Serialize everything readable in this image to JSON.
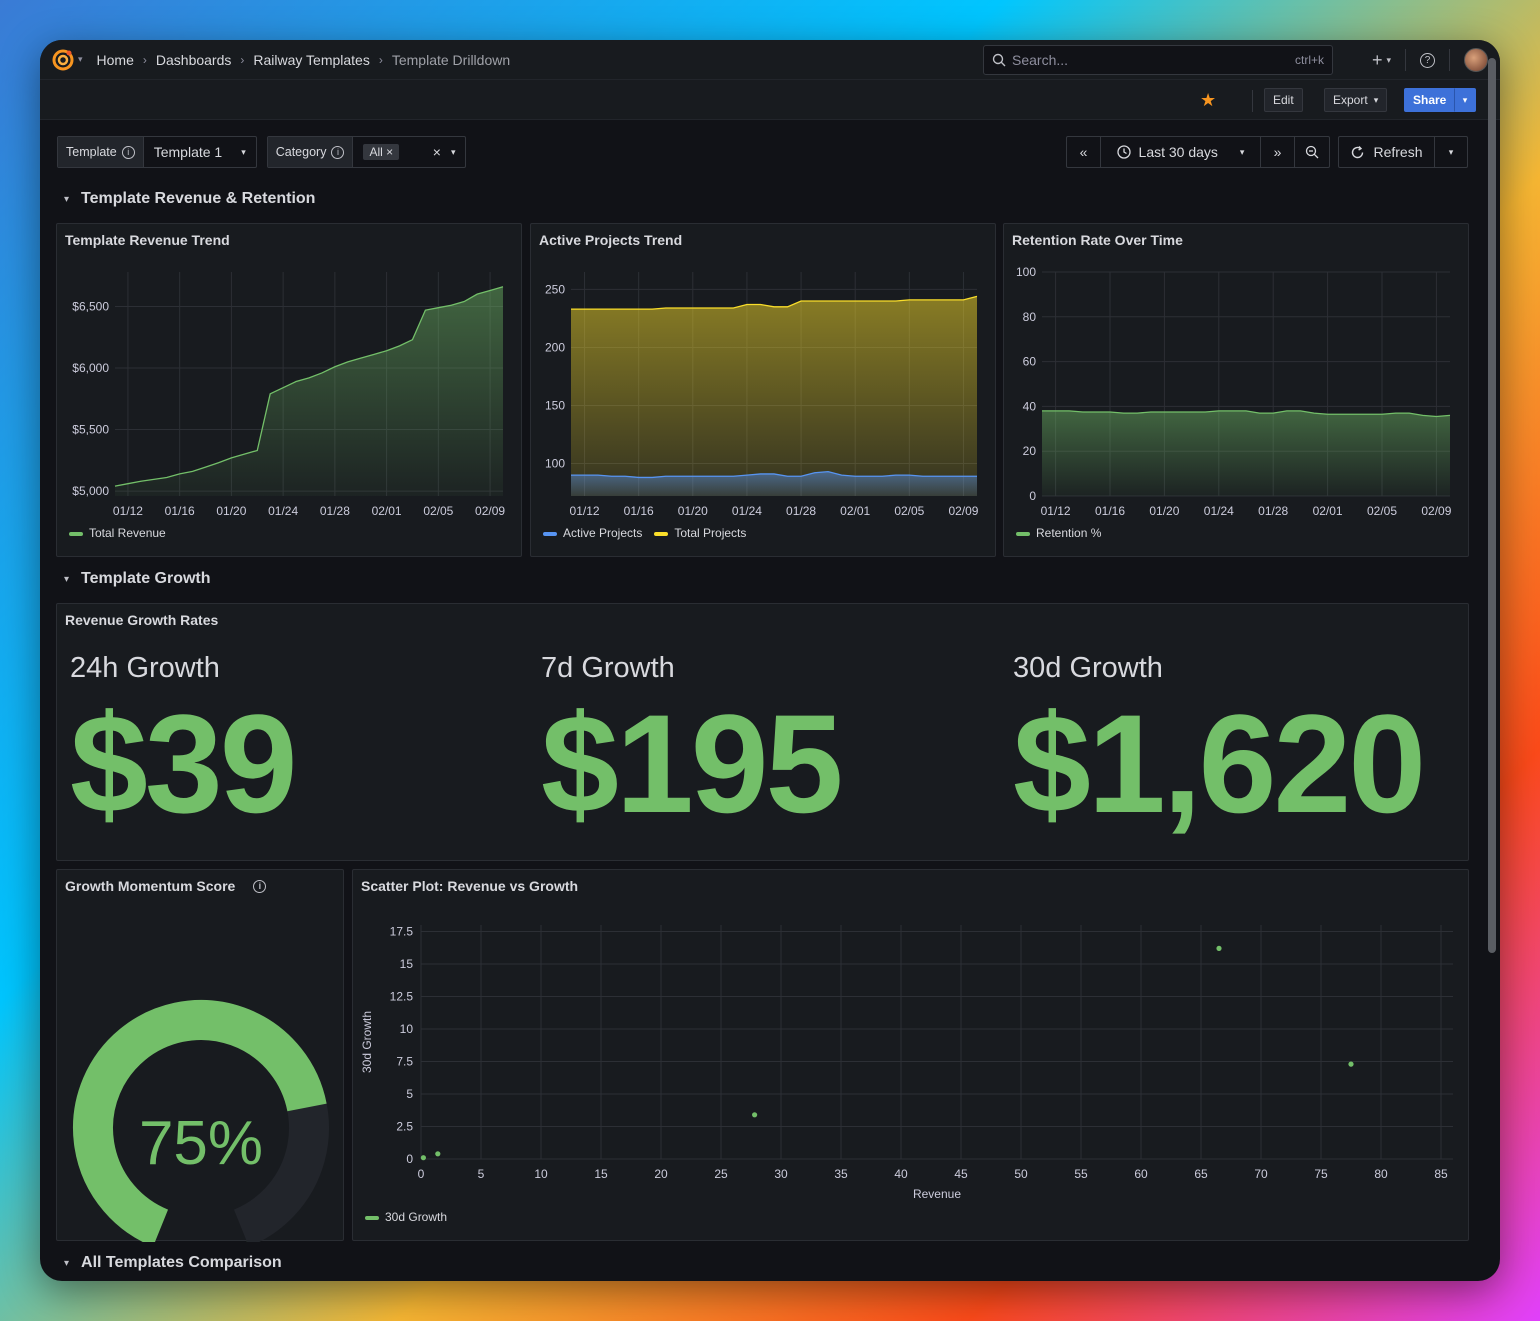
{
  "topbar": {
    "breadcrumbs": [
      "Home",
      "Dashboards",
      "Railway Templates",
      "Template Drilldown"
    ],
    "search_placeholder": "Search...",
    "search_shortcut": "ctrl+k",
    "plus_label": "+"
  },
  "actions": {
    "edit": "Edit",
    "export": "Export",
    "share": "Share"
  },
  "variables": {
    "template": {
      "label": "Template",
      "value": "Template 1"
    },
    "category": {
      "label": "Category",
      "chip": "All"
    }
  },
  "time": {
    "range": "Last 30 days",
    "refresh": "Refresh"
  },
  "rows": {
    "revenue_retention": "Template Revenue & Retention",
    "growth": "Template Growth",
    "comparison": "All Templates Comparison"
  },
  "panels": {
    "revenue_trend": {
      "title": "Template Revenue Trend",
      "legend": [
        "Total Revenue"
      ]
    },
    "active_projects": {
      "title": "Active Projects Trend",
      "legend": [
        "Active Projects",
        "Total Projects"
      ]
    },
    "retention": {
      "title": "Retention Rate Over Time",
      "legend": [
        "Retention %"
      ]
    },
    "growth_rates": {
      "title": "Revenue Growth Rates",
      "stats": [
        {
          "label": "24h Growth",
          "value": "$39"
        },
        {
          "label": "7d Growth",
          "value": "$195"
        },
        {
          "label": "30d Growth",
          "value": "$1,620"
        }
      ]
    },
    "momentum": {
      "title": "Growth Momentum Score",
      "value": "75%",
      "percent": 75
    },
    "scatter": {
      "title": "Scatter Plot: Revenue vs Growth",
      "xlabel": "Revenue",
      "ylabel": "30d Growth",
      "legend": [
        "30d Growth"
      ]
    }
  },
  "colors": {
    "green": "#73bf69",
    "yellow": "#fade2a",
    "blue": "#5794f2",
    "red": "#f2495c",
    "accent": "#3d71d9",
    "star": "#f79520"
  },
  "chart_data": [
    {
      "type": "area",
      "title": "Template Revenue Trend",
      "x": [
        "01/11",
        "01/12",
        "01/13",
        "01/14",
        "01/15",
        "01/16",
        "01/17",
        "01/18",
        "01/19",
        "01/20",
        "01/21",
        "01/22",
        "01/23",
        "01/24",
        "01/25",
        "01/26",
        "01/27",
        "01/28",
        "01/29",
        "01/30",
        "01/31",
        "02/01",
        "02/02",
        "02/03",
        "02/04",
        "02/05",
        "02/06",
        "02/07",
        "02/08",
        "02/09",
        "02/10"
      ],
      "x_ticks": [
        "01/12",
        "01/16",
        "01/20",
        "01/24",
        "01/28",
        "02/01",
        "02/05",
        "02/09"
      ],
      "series": [
        {
          "name": "Total Revenue",
          "values": [
            5040,
            5060,
            5080,
            5095,
            5110,
            5140,
            5160,
            5195,
            5230,
            5270,
            5300,
            5330,
            5790,
            5840,
            5890,
            5920,
            5960,
            6010,
            6050,
            6080,
            6110,
            6140,
            6180,
            6230,
            6470,
            6490,
            6510,
            6540,
            6600,
            6630,
            6660
          ]
        }
      ],
      "y_ticks": [
        "$5,000",
        "$5,500",
        "$6,000",
        "$6,500"
      ],
      "ylim": [
        4960,
        6780
      ]
    },
    {
      "type": "area",
      "title": "Active Projects Trend",
      "x_ticks": [
        "01/12",
        "01/16",
        "01/20",
        "01/24",
        "01/28",
        "02/01",
        "02/05",
        "02/09"
      ],
      "series": [
        {
          "name": "Active Projects",
          "values": [
            90,
            90,
            90,
            89,
            89,
            88,
            88,
            89,
            89,
            89,
            89,
            89,
            89,
            90,
            91,
            91,
            89,
            89,
            92,
            93,
            90,
            89,
            89,
            89,
            90,
            90,
            89,
            89,
            89,
            89,
            89
          ]
        },
        {
          "name": "Total Projects",
          "values": [
            233,
            233,
            233,
            233,
            233,
            233,
            233,
            234,
            234,
            234,
            234,
            234,
            234,
            237,
            237,
            235,
            235,
            240,
            240,
            240,
            240,
            240,
            240,
            240,
            240,
            241,
            241,
            241,
            241,
            241,
            244
          ]
        }
      ],
      "y_ticks": [
        "100",
        "150",
        "200",
        "250"
      ],
      "ylim": [
        72,
        265
      ]
    },
    {
      "type": "area",
      "title": "Retention Rate Over Time",
      "x_ticks": [
        "01/12",
        "01/16",
        "01/20",
        "01/24",
        "01/28",
        "02/01",
        "02/05",
        "02/09"
      ],
      "series": [
        {
          "name": "Retention %",
          "values": [
            38,
            38,
            38,
            37.5,
            37.5,
            37.5,
            37,
            37,
            37.5,
            37.5,
            37.5,
            37.5,
            37.5,
            38,
            38,
            38,
            37,
            37,
            38,
            38,
            37,
            36.5,
            36.5,
            36.5,
            36.5,
            36.5,
            37,
            37,
            36,
            35.5,
            36
          ]
        }
      ],
      "y_ticks": [
        "0",
        "20",
        "40",
        "60",
        "80",
        "100"
      ],
      "ylim": [
        0,
        100
      ]
    },
    {
      "type": "scatter",
      "title": "Scatter Plot: Revenue vs Growth",
      "xlabel": "Revenue",
      "ylabel": "30d Growth",
      "x_ticks": [
        "0",
        "5",
        "10",
        "15",
        "20",
        "25",
        "30",
        "35",
        "40",
        "45",
        "50",
        "55",
        "60",
        "65",
        "70",
        "75",
        "80",
        "85"
      ],
      "y_ticks": [
        "0",
        "2.5",
        "5",
        "7.5",
        "10",
        "12.5",
        "15",
        "17.5"
      ],
      "xlim": [
        0,
        86
      ],
      "ylim": [
        0,
        18
      ],
      "series": [
        {
          "name": "30d Growth",
          "points": [
            [
              0.2,
              0.1
            ],
            [
              1.4,
              0.4
            ],
            [
              27.8,
              3.4
            ],
            [
              66.5,
              16.2
            ],
            [
              77.5,
              7.3
            ]
          ]
        }
      ]
    }
  ]
}
